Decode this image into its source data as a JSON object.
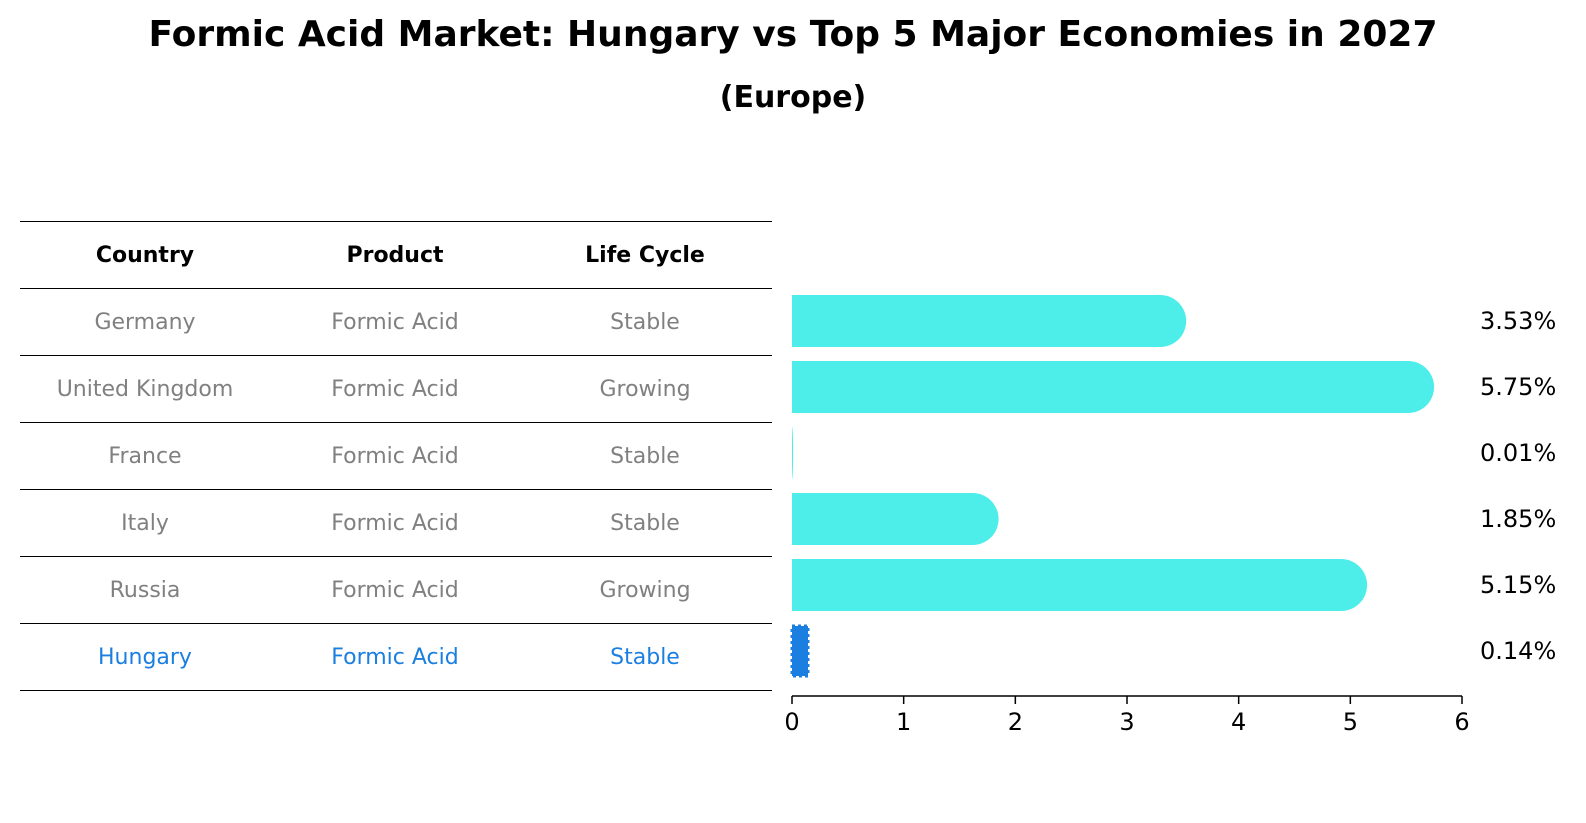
{
  "title": "Formic Acid Market: Hungary vs Top 5 Major Economies in 2027",
  "subtitle": "(Europe)",
  "table": {
    "headers": [
      "Country",
      "Product",
      "Life Cycle"
    ],
    "rows": [
      [
        "Germany",
        "Formic Acid",
        "Stable"
      ],
      [
        "United Kingdom",
        "Formic Acid",
        "Growing"
      ],
      [
        "France",
        "Formic Acid",
        "Stable"
      ],
      [
        "Italy",
        "Formic Acid",
        "Stable"
      ],
      [
        "Russia",
        "Formic Acid",
        "Growing"
      ],
      [
        "Hungary",
        "Formic Acid",
        "Stable"
      ]
    ]
  },
  "colors": {
    "bar": "#4deeea",
    "highlight": "#1a7fe0",
    "muted_text": "#808080"
  },
  "chart_data": {
    "type": "bar",
    "orientation": "horizontal",
    "categories": [
      "Germany",
      "United Kingdom",
      "France",
      "Italy",
      "Russia",
      "Hungary"
    ],
    "values": [
      3.53,
      5.75,
      0.01,
      1.85,
      5.15,
      0.14
    ],
    "value_labels": [
      "3.53%",
      "5.75%",
      "0.01%",
      "1.85%",
      "5.15%",
      "0.14%"
    ],
    "xlim": [
      0,
      6
    ],
    "xticks": [
      "0",
      "1",
      "2",
      "3",
      "4",
      "5",
      "6"
    ],
    "highlight_category": "Hungary",
    "grid": false
  }
}
